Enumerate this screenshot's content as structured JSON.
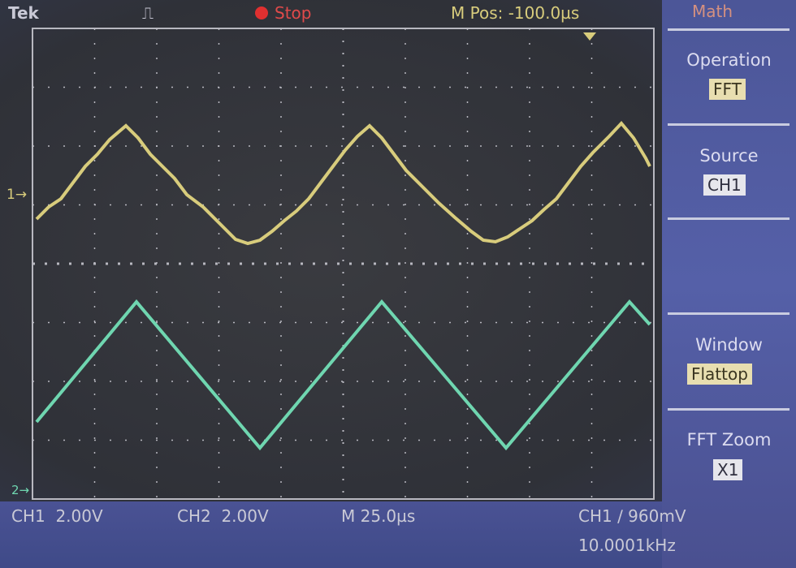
{
  "header": {
    "brand": "Tek",
    "run_state": "Stop",
    "position": "M Pos: -100.0µs",
    "menu_title": "Math"
  },
  "markers": {
    "ch1": "1",
    "ch2": "2"
  },
  "menu": {
    "items": [
      {
        "label": "Operation",
        "value": "FFT"
      },
      {
        "label": "Source",
        "value": "CH1"
      },
      {
        "label": "Window",
        "value": "Flattop"
      },
      {
        "label": "FFT Zoom",
        "value": "X1"
      }
    ]
  },
  "footer": {
    "ch1_scale": "CH1  2.00V",
    "ch2_scale": "CH2  2.00V",
    "timebase": "M 25.0µs",
    "trigger": "CH1 ∕ 960mV",
    "frequency": "10.0001kHz"
  }
}
